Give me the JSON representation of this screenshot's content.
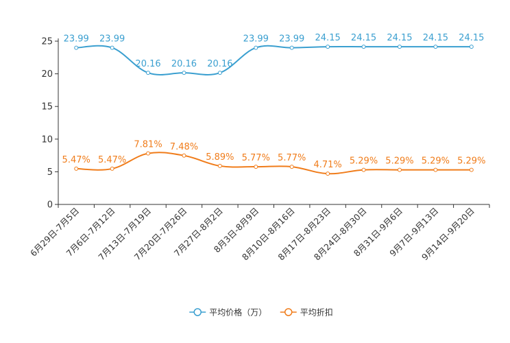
{
  "chart_data": {
    "type": "line",
    "categories": [
      "6月29日-7月5日",
      "7月6日-7月12日",
      "7月13日-7月19日",
      "7月20日-7月26日",
      "7月27日-8月2日",
      "8月3日-8月9日",
      "8月10日-8月16日",
      "8月17日-8月23日",
      "8月24日-8月30日",
      "8月31日-9月6日",
      "9月7日-9月13日",
      "9月14日-9月20日"
    ],
    "ylim": [
      0,
      25
    ],
    "yticks": [
      0,
      5,
      10,
      15,
      20,
      25
    ],
    "grid": false,
    "legend_position": "bottom-center",
    "series": [
      {
        "name": "平均价格（万）",
        "color": "#3a9fd0",
        "values": [
          23.99,
          23.99,
          20.16,
          20.16,
          20.16,
          23.99,
          23.99,
          24.15,
          24.15,
          24.15,
          24.15,
          24.15
        ],
        "labels": [
          "23.99",
          "23.99",
          "20.16",
          "20.16",
          "20.16",
          "23.99",
          "23.99",
          "24.15",
          "24.15",
          "24.15",
          "24.15",
          "24.15"
        ]
      },
      {
        "name": "平均折扣",
        "color": "#f07c1a",
        "values": [
          5.47,
          5.47,
          7.81,
          7.48,
          5.89,
          5.77,
          5.77,
          4.71,
          5.29,
          5.29,
          5.29,
          5.29
        ],
        "labels": [
          "5.47%",
          "5.47%",
          "7.81%",
          "7.48%",
          "5.89%",
          "5.77%",
          "5.77%",
          "4.71%",
          "5.29%",
          "5.29%",
          "5.29%",
          "5.29%"
        ]
      }
    ]
  }
}
